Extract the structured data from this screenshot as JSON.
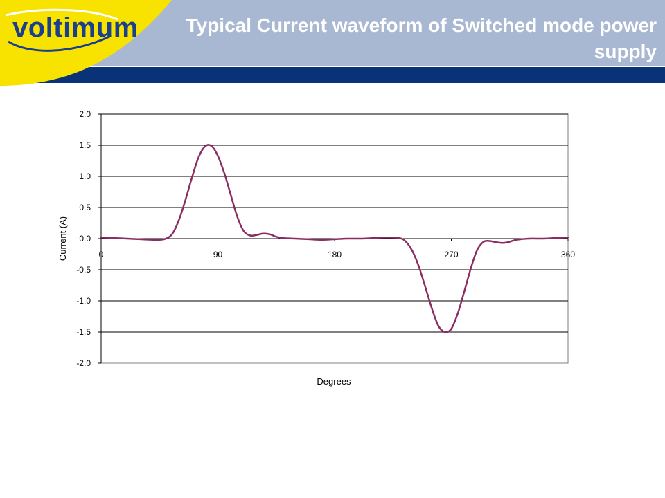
{
  "header": {
    "logo_text": "voltimum",
    "title": "Typical Current waveform of Switched mode power supply"
  },
  "colors": {
    "header_band": "#a9b8d2",
    "header_bar": "#0a3278",
    "logo_yellow": "#f7e200",
    "series": "#8b2d63"
  },
  "chart_data": {
    "type": "line",
    "title": "",
    "xlabel": "Degrees",
    "ylabel": "Current (A)",
    "xlim": [
      0,
      360
    ],
    "ylim": [
      -2.0,
      2.0
    ],
    "x_ticks": [
      0,
      90,
      180,
      270,
      360
    ],
    "x_tick_labels": [
      "0",
      "90",
      "180",
      "270",
      "360"
    ],
    "y_ticks": [
      2.0,
      1.5,
      1.0,
      0.5,
      0.0,
      -0.5,
      -1.0,
      -1.5,
      -2.0
    ],
    "y_tick_labels": [
      "2.0",
      "1.5",
      "1.0",
      "0.5",
      "0.0",
      "-0.5",
      "-1.0",
      "-1.5",
      "-2.0"
    ],
    "grid": "horizontal",
    "legend": "none",
    "series": [
      {
        "x": [
          0,
          10,
          20,
          30,
          40,
          45,
          50,
          55,
          60,
          65,
          70,
          75,
          80,
          85,
          90,
          95,
          100,
          105,
          110,
          115,
          120,
          125,
          130,
          135,
          140,
          150,
          160,
          170,
          180,
          190,
          200,
          210,
          220,
          230,
          235,
          240,
          245,
          250,
          255,
          260,
          265,
          270,
          275,
          280,
          285,
          290,
          295,
          300,
          305,
          310,
          315,
          320,
          330,
          340,
          350,
          360
        ],
        "y": [
          0.02,
          0.01,
          0.0,
          -0.01,
          -0.02,
          -0.02,
          0.0,
          0.08,
          0.3,
          0.62,
          0.98,
          1.3,
          1.48,
          1.49,
          1.33,
          1.05,
          0.7,
          0.35,
          0.12,
          0.05,
          0.06,
          0.08,
          0.07,
          0.03,
          0.01,
          0.0,
          -0.01,
          -0.02,
          -0.01,
          0.0,
          0.0,
          0.01,
          0.02,
          0.01,
          -0.05,
          -0.2,
          -0.45,
          -0.78,
          -1.12,
          -1.4,
          -1.5,
          -1.45,
          -1.2,
          -0.85,
          -0.48,
          -0.18,
          -0.05,
          -0.04,
          -0.06,
          -0.07,
          -0.05,
          -0.02,
          0.0,
          0.0,
          0.01,
          0.02
        ]
      }
    ]
  }
}
